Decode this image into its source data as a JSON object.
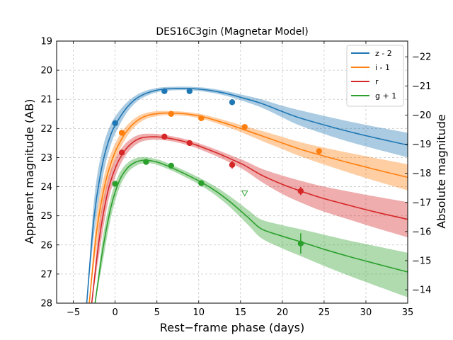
{
  "chart_data": {
    "type": "line",
    "title": "DES16C3gin (Magnetar Model)",
    "xlabel": "Rest−frame phase (days)",
    "ylabel": "Apparent magnitude (AB)",
    "ylabel_right": "Absolute magnitude",
    "xlim": [
      -7,
      35
    ],
    "ylim": [
      28,
      19
    ],
    "y2lim": [
      -13.54,
      -22.54
    ],
    "x_ticks": [
      -5,
      0,
      5,
      10,
      15,
      20,
      25,
      30,
      35
    ],
    "x_tick_labels": [
      "−5",
      "0",
      "5",
      "10",
      "15",
      "20",
      "25",
      "30",
      "35"
    ],
    "y_ticks": [
      19,
      20,
      21,
      22,
      23,
      24,
      25,
      26,
      27,
      28
    ],
    "y_tick_labels": [
      "19",
      "20",
      "21",
      "22",
      "23",
      "24",
      "25",
      "26",
      "27",
      "28"
    ],
    "y2_ticks": [
      -22,
      -21,
      -20,
      -19,
      -18,
      -17,
      -16,
      -15,
      -14
    ],
    "y2_tick_labels": [
      "−22",
      "−21",
      "−20",
      "−19",
      "−18",
      "−17",
      "−16",
      "−15",
      "−14"
    ],
    "grid": true,
    "legend_position": "top-right",
    "series": [
      {
        "name": "z - 2",
        "color": "#1f77b4",
        "model": {
          "x": [
            -3.4,
            -2.5,
            -1.5,
            -0.5,
            0.5,
            1.5,
            2.5,
            3.5,
            4.5,
            5.5,
            7,
            9,
            11,
            13,
            15,
            17.5,
            20,
            22,
            25,
            28,
            32,
            35
          ],
          "y": [
            28,
            25.0,
            23.2,
            22.2,
            21.65,
            21.25,
            20.98,
            20.82,
            20.72,
            20.66,
            20.63,
            20.63,
            20.68,
            20.78,
            20.93,
            21.14,
            21.42,
            21.63,
            21.88,
            22.11,
            22.38,
            22.57
          ],
          "lower": [
            28,
            24.4,
            22.7,
            21.85,
            21.4,
            21.08,
            20.86,
            20.72,
            20.64,
            20.59,
            20.57,
            20.57,
            20.61,
            20.7,
            20.83,
            21.0,
            21.22,
            21.37,
            21.57,
            21.76,
            21.99,
            22.15
          ],
          "upper": [
            28,
            25.6,
            23.7,
            22.55,
            21.9,
            21.42,
            21.1,
            20.92,
            20.8,
            20.73,
            20.69,
            20.69,
            20.75,
            20.86,
            21.03,
            21.28,
            21.62,
            21.89,
            22.19,
            22.46,
            22.77,
            22.99
          ]
        },
        "points": [
          {
            "x": 0.0,
            "y": 21.82,
            "err": 0.05
          },
          {
            "x": 5.9,
            "y": 20.72,
            "err": 0.05
          },
          {
            "x": 8.9,
            "y": 20.72,
            "err": 0.05
          },
          {
            "x": 14.0,
            "y": 21.1,
            "err": 0.05
          }
        ],
        "upper_limits": []
      },
      {
        "name": "i - 1",
        "color": "#ff7f0e",
        "model": {
          "x": [
            -3.1,
            -2.2,
            -1.2,
            -0.2,
            0.8,
            1.8,
            2.8,
            3.8,
            4.8,
            6,
            7.5,
            9,
            10.5,
            12,
            14,
            16,
            18,
            20,
            22,
            25,
            28,
            31,
            35
          ],
          "y": [
            28,
            25.5,
            23.9,
            22.95,
            22.35,
            21.95,
            21.7,
            21.56,
            21.5,
            21.47,
            21.48,
            21.52,
            21.6,
            21.72,
            21.9,
            22.1,
            22.3,
            22.5,
            22.7,
            22.95,
            23.18,
            23.4,
            23.68
          ],
          "lower": [
            28,
            25.0,
            23.5,
            22.65,
            22.12,
            21.78,
            21.57,
            21.46,
            21.41,
            21.4,
            21.41,
            21.45,
            21.52,
            21.63,
            21.79,
            21.96,
            22.12,
            22.29,
            22.46,
            22.66,
            22.84,
            23.01,
            23.23
          ],
          "upper": [
            28,
            26.0,
            24.3,
            23.25,
            22.58,
            22.12,
            21.83,
            21.66,
            21.59,
            21.54,
            21.55,
            21.59,
            21.68,
            21.81,
            22.01,
            22.24,
            22.48,
            22.71,
            22.94,
            23.24,
            23.52,
            23.79,
            24.13
          ]
        },
        "points": [
          {
            "x": 0.8,
            "y": 22.15,
            "err": 0.05
          },
          {
            "x": 6.7,
            "y": 21.5,
            "err": 0.05
          },
          {
            "x": 10.3,
            "y": 21.65,
            "err": 0.05
          },
          {
            "x": 15.5,
            "y": 21.95,
            "err": 0.05
          },
          {
            "x": 24.4,
            "y": 22.78,
            "err": 0.05
          }
        ],
        "upper_limits": []
      },
      {
        "name": "r",
        "color": "#d62728",
        "model": {
          "x": [
            -2.8,
            -1.9,
            -0.9,
            0.1,
            1.1,
            2.1,
            3.1,
            4.1,
            5.1,
            6.5,
            8,
            9.5,
            11,
            12.5,
            14,
            15.5,
            17.5,
            20,
            22.5,
            25,
            28,
            31,
            35
          ],
          "y": [
            28,
            25.8,
            24.2,
            23.3,
            22.78,
            22.48,
            22.33,
            22.29,
            22.29,
            22.34,
            22.43,
            22.55,
            22.71,
            22.88,
            23.07,
            23.27,
            23.6,
            23.92,
            24.18,
            24.41,
            24.64,
            24.86,
            25.12
          ],
          "lower": [
            28,
            25.3,
            23.8,
            23.0,
            22.56,
            22.32,
            22.2,
            22.18,
            22.19,
            22.25,
            22.34,
            22.46,
            22.61,
            22.77,
            22.94,
            23.11,
            23.38,
            23.62,
            23.82,
            24.0,
            24.17,
            24.33,
            24.53
          ],
          "upper": [
            28,
            26.3,
            24.6,
            23.6,
            23.0,
            22.65,
            22.46,
            22.4,
            22.39,
            22.43,
            22.52,
            22.65,
            22.82,
            23.0,
            23.21,
            23.44,
            23.83,
            24.25,
            24.58,
            24.86,
            25.13,
            25.4,
            25.74
          ]
        },
        "points": [
          {
            "x": 0.8,
            "y": 22.83,
            "err": 0.06
          },
          {
            "x": 5.9,
            "y": 22.28,
            "err": 0.05
          },
          {
            "x": 8.9,
            "y": 22.5,
            "err": 0.05
          },
          {
            "x": 14.0,
            "y": 23.25,
            "err": 0.13
          },
          {
            "x": 22.2,
            "y": 24.15,
            "err": 0.14
          }
        ],
        "upper_limits": []
      },
      {
        "name": "g + 1",
        "color": "#2ca02c",
        "model": {
          "x": [
            -2.4,
            -1.5,
            -0.5,
            0.5,
            1.5,
            2.5,
            3.5,
            4.5,
            5.5,
            7,
            8.5,
            10,
            11.5,
            13,
            14.5,
            16,
            17.5,
            20,
            22.5,
            25,
            28,
            31,
            35
          ],
          "y": [
            28,
            26.2,
            24.7,
            23.8,
            23.35,
            23.15,
            23.09,
            23.12,
            23.2,
            23.38,
            23.58,
            23.8,
            24.05,
            24.35,
            24.7,
            25.08,
            25.45,
            25.7,
            25.92,
            26.15,
            26.4,
            26.63,
            26.93
          ],
          "lower": [
            28,
            25.8,
            24.35,
            23.55,
            23.18,
            23.02,
            22.98,
            23.03,
            23.1,
            23.28,
            23.47,
            23.68,
            23.91,
            24.18,
            24.49,
            24.82,
            25.13,
            25.32,
            25.48,
            25.65,
            25.85,
            26.03,
            26.27
          ],
          "upper": [
            28,
            26.6,
            25.05,
            24.05,
            23.52,
            23.28,
            23.2,
            23.21,
            23.3,
            23.48,
            23.69,
            23.92,
            24.19,
            24.52,
            24.91,
            25.34,
            25.77,
            26.12,
            26.42,
            26.72,
            27.06,
            27.38,
            27.8
          ]
        },
        "points": [
          {
            "x": 0.0,
            "y": 23.9,
            "err": 0.05
          },
          {
            "x": 3.7,
            "y": 23.15,
            "err": 0.05
          },
          {
            "x": 6.7,
            "y": 23.28,
            "err": 0.05
          },
          {
            "x": 10.3,
            "y": 23.88,
            "err": 0.05
          },
          {
            "x": 22.2,
            "y": 25.95,
            "err": 0.35
          }
        ],
        "upper_limits": [
          {
            "x": 15.5,
            "y": 24.23
          }
        ]
      }
    ]
  }
}
